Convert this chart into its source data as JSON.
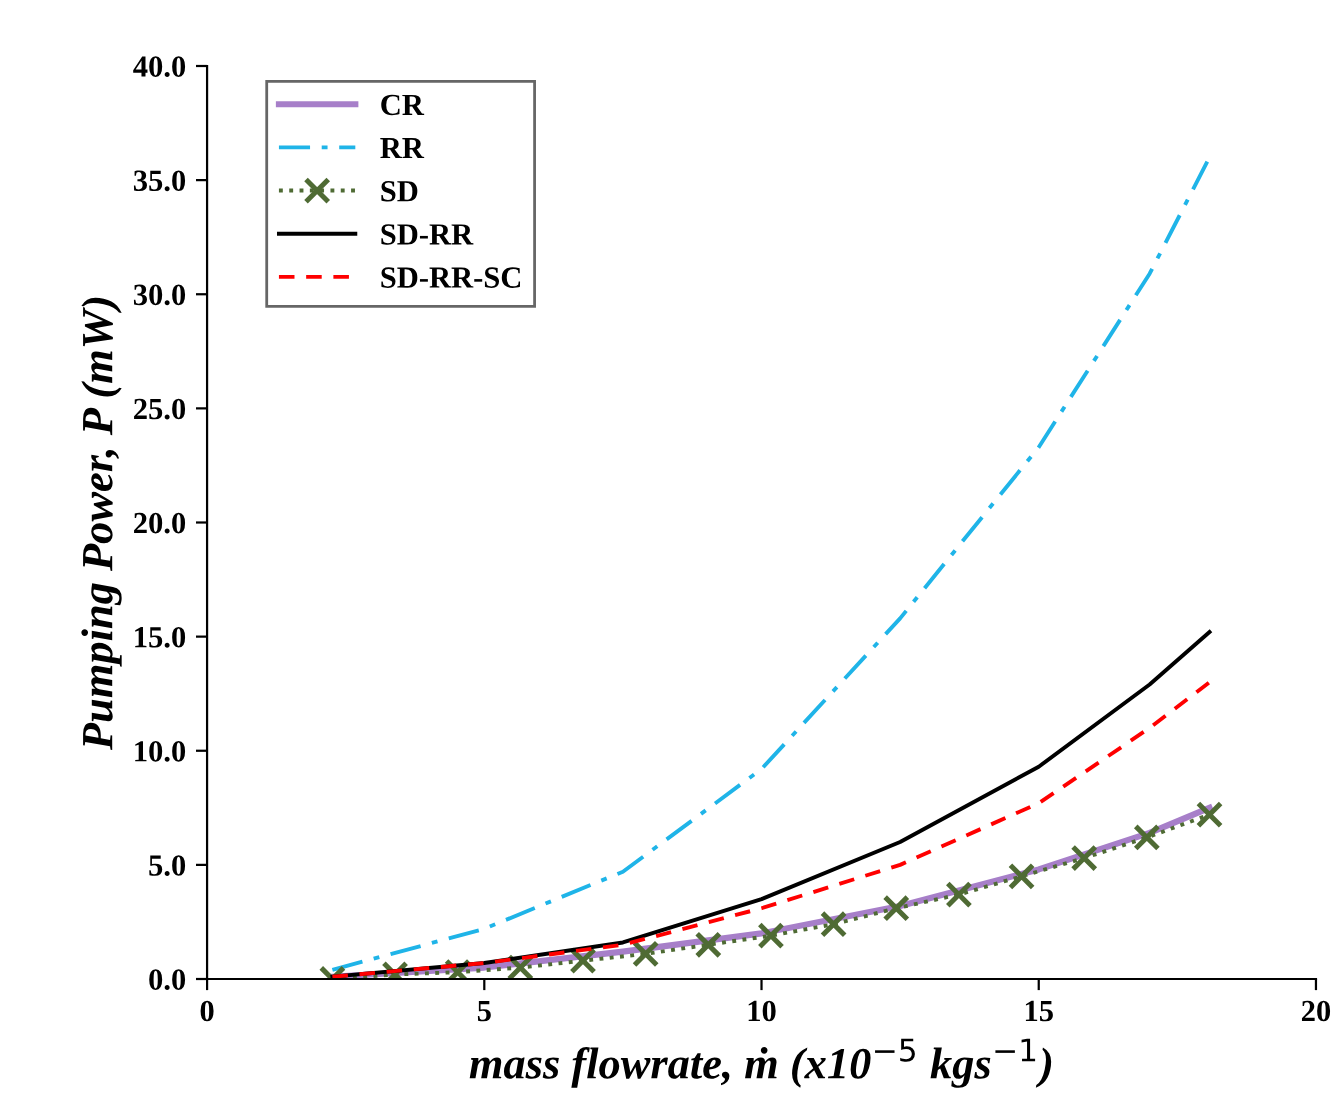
{
  "chart_data": {
    "type": "line",
    "xlabel": "mass flowrate, ṁ (x10$^{−5}$ kgs$^{−1}$)",
    "ylabel": "Pumping Power, P (mW)",
    "xlim": [
      0,
      20
    ],
    "xticks": [
      0,
      5,
      10,
      15,
      20
    ],
    "ylim": [
      0,
      40
    ],
    "yticks": [
      {
        "value": 0,
        "label": "0.0"
      },
      {
        "value": 5,
        "label": "5.0"
      },
      {
        "value": 10,
        "label": "10.0"
      },
      {
        "value": 15,
        "label": "15.0"
      },
      {
        "value": 20,
        "label": "20.0"
      },
      {
        "value": 25,
        "label": "25.0"
      },
      {
        "value": 30,
        "label": "30.0"
      },
      {
        "value": 35,
        "label": "35.0"
      },
      {
        "value": 40,
        "label": "40.0"
      }
    ],
    "grid": false,
    "legend": "top left",
    "series": [
      {
        "name": "CR",
        "color": "#a77fc9",
        "line_style": "solid",
        "marker": "none",
        "x": [
          2.26,
          5,
          7.5,
          10,
          12.5,
          15,
          17,
          18.08
        ],
        "values": [
          0.1,
          0.5,
          1.2,
          2.0,
          3.2,
          4.8,
          6.4,
          7.5
        ]
      },
      {
        "name": "RR",
        "color": "#1fb4e8",
        "line_style": "dashdot",
        "marker": "none",
        "x": [
          2.26,
          5,
          7.5,
          10,
          12.5,
          15,
          17,
          18.08
        ],
        "values": [
          0.4,
          2.2,
          4.7,
          9.2,
          15.8,
          23.3,
          30.9,
          36.0
        ]
      },
      {
        "name": "SD",
        "color": "#4f6b34",
        "line_style": "dotted",
        "marker": "cross",
        "x": [
          2.26,
          3.39,
          4.52,
          5.65,
          6.78,
          7.91,
          9.04,
          10.17,
          11.3,
          12.43,
          13.56,
          14.69,
          15.82,
          16.95,
          18.08
        ],
        "values": [
          0.0,
          0.2,
          0.3,
          0.5,
          0.8,
          1.1,
          1.5,
          1.9,
          2.4,
          3.1,
          3.7,
          4.5,
          5.3,
          6.2,
          7.2
        ]
      },
      {
        "name": "SD-RR",
        "color": "#000000",
        "line_style": "solid",
        "marker": "none",
        "x": [
          2.26,
          5,
          7.5,
          10,
          12.5,
          15,
          17,
          18.08
        ],
        "values": [
          0.1,
          0.7,
          1.6,
          3.5,
          6.0,
          9.3,
          12.9,
          15.2
        ]
      },
      {
        "name": "SD-RR-SC",
        "color": "#ff0000",
        "line_style": "dashed",
        "marker": "none",
        "x": [
          2.26,
          5,
          7.5,
          10,
          12.5,
          15,
          17,
          18.08
        ],
        "values": [
          0.1,
          0.7,
          1.5,
          3.1,
          5.0,
          7.7,
          11.0,
          13.0
        ]
      }
    ]
  }
}
